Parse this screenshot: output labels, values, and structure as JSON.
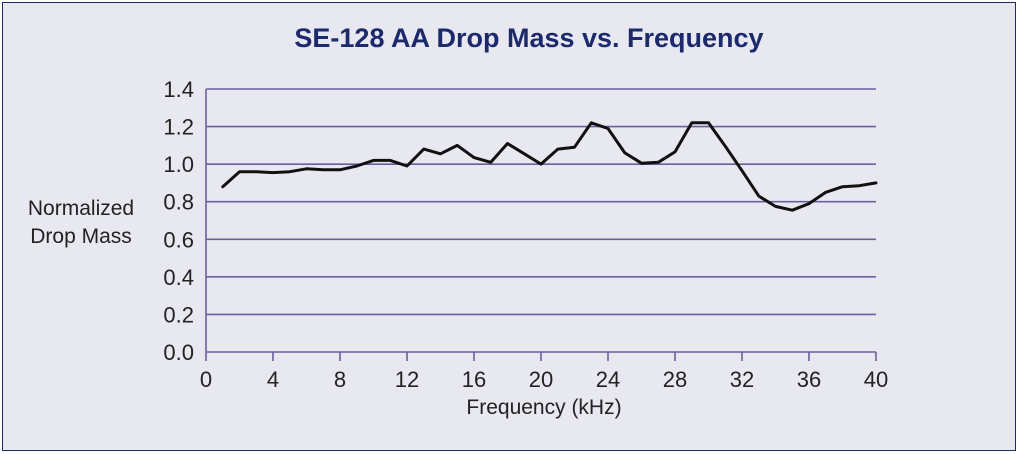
{
  "chart_data": {
    "type": "line",
    "title": "SE-128 AA Drop Mass vs. Frequency",
    "xlabel": "Frequency (kHz)",
    "ylabel_lines": [
      "Normalized",
      "Drop Mass"
    ],
    "xlim": [
      0,
      40
    ],
    "ylim": [
      0,
      1.4
    ],
    "xticks": [
      "0",
      "4",
      "8",
      "12",
      "16",
      "20",
      "24",
      "28",
      "32",
      "36",
      "40"
    ],
    "yticks": [
      "0.0",
      "0.2",
      "0.4",
      "0.6",
      "0.8",
      "1.0",
      "1.2",
      "1.4"
    ],
    "grid": "horizontal",
    "line_color": "#111111",
    "grid_color": "#6b5fa0",
    "series": [
      {
        "name": "Normalized Drop Mass",
        "x": [
          1,
          2,
          3,
          4,
          5,
          6,
          7,
          8,
          9,
          10,
          11,
          12,
          13,
          14,
          15,
          16,
          17,
          18,
          19,
          20,
          21,
          22,
          23,
          24,
          25,
          26,
          27,
          28,
          29,
          30,
          31,
          32,
          33,
          34,
          35,
          36,
          37,
          38,
          39,
          40
        ],
        "y": [
          0.88,
          0.96,
          0.96,
          0.955,
          0.96,
          0.975,
          0.97,
          0.97,
          0.99,
          1.02,
          1.02,
          0.99,
          1.08,
          1.055,
          1.1,
          1.035,
          1.01,
          1.11,
          1.055,
          1.0,
          1.08,
          1.09,
          1.22,
          1.19,
          1.06,
          1.005,
          1.01,
          1.065,
          1.22,
          1.22,
          1.095,
          0.965,
          0.83,
          0.775,
          0.755,
          0.79,
          0.85,
          0.88,
          0.885,
          0.9
        ]
      }
    ]
  }
}
